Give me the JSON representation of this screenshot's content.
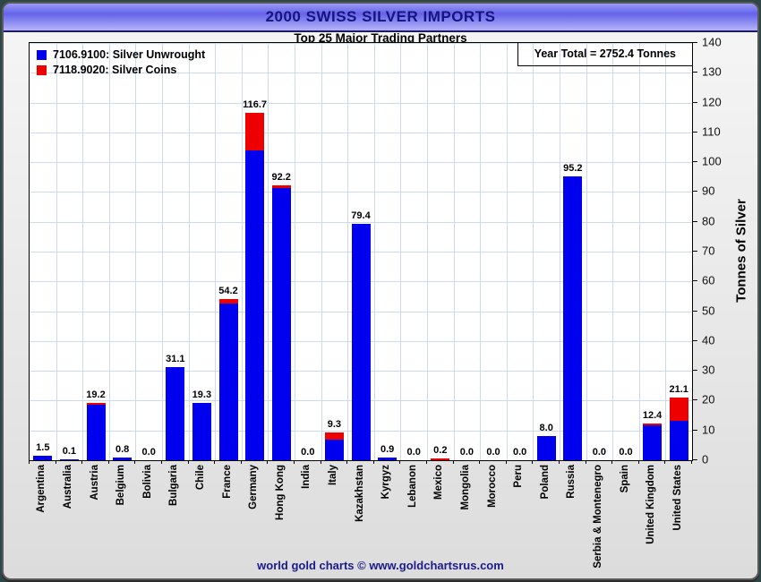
{
  "window_title": "2000 SWISS SILVER IMPORTS",
  "footer": {
    "text": "world gold charts © www.goldchartsrus.com"
  },
  "colors": {
    "bar_unwrought": "#0000ee",
    "bar_coins": "#ee0000",
    "gridline": "#cdd9ec",
    "title_navy": "#15157e",
    "footer_navy": "#1a1a8c"
  },
  "chart_data": {
    "type": "bar",
    "stacked": true,
    "title": "2000 SWISS SILVER IMPORTS",
    "subtitle": "Top 25 Major Trading Partners",
    "annotation": "Year Total = 2752.4 Tonnes",
    "ylabel": "Tonnes of Silver",
    "ylim": [
      0,
      140
    ],
    "ytick_step": 10,
    "grid": true,
    "legend_position": "top-left",
    "legend": [
      {
        "label": "7106.9100: Silver Unwrought",
        "color": "#0000ee"
      },
      {
        "label": "7118.9020: Silver Coins",
        "color": "#ee0000"
      }
    ],
    "categories": [
      "Argentina",
      "Australia",
      "Austria",
      "Belgium",
      "Bolivia",
      "Bulgaria",
      "Chile",
      "France",
      "Germany",
      "Hong Kong",
      "India",
      "Italy",
      "Kazakhstan",
      "Kyrgyz",
      "Lebanon",
      "Mexico",
      "Mongolia",
      "Morocco",
      "Peru",
      "Poland",
      "Russia",
      "Serbia & Montenegro",
      "Spain",
      "United Kingdom",
      "United States"
    ],
    "totals": [
      1.5,
      0.1,
      19.2,
      0.8,
      0.0,
      31.1,
      19.3,
      54.2,
      116.7,
      92.2,
      0.0,
      9.3,
      79.4,
      0.9,
      0.0,
      0.2,
      0.0,
      0.0,
      0.0,
      8.0,
      95.2,
      0.0,
      0.0,
      12.4,
      21.1
    ],
    "series": [
      {
        "name": "7106.9100: Silver Unwrought",
        "color": "#0000ee",
        "values": [
          1.5,
          0.1,
          18.5,
          0.8,
          0.0,
          31.1,
          19.3,
          52.7,
          104.0,
          91.2,
          0.0,
          7.0,
          79.4,
          0.9,
          0.0,
          0.0,
          0.0,
          0.0,
          0.0,
          8.0,
          95.2,
          0.0,
          0.0,
          11.8,
          13.1
        ]
      },
      {
        "name": "7118.9020: Silver Coins",
        "color": "#ee0000",
        "values": [
          0.0,
          0.0,
          0.7,
          0.0,
          0.0,
          0.0,
          0.0,
          1.5,
          12.7,
          1.0,
          0.0,
          2.3,
          0.0,
          0.0,
          0.0,
          0.2,
          0.0,
          0.0,
          0.0,
          0.0,
          0.0,
          0.0,
          0.0,
          0.6,
          8.0
        ]
      }
    ]
  }
}
